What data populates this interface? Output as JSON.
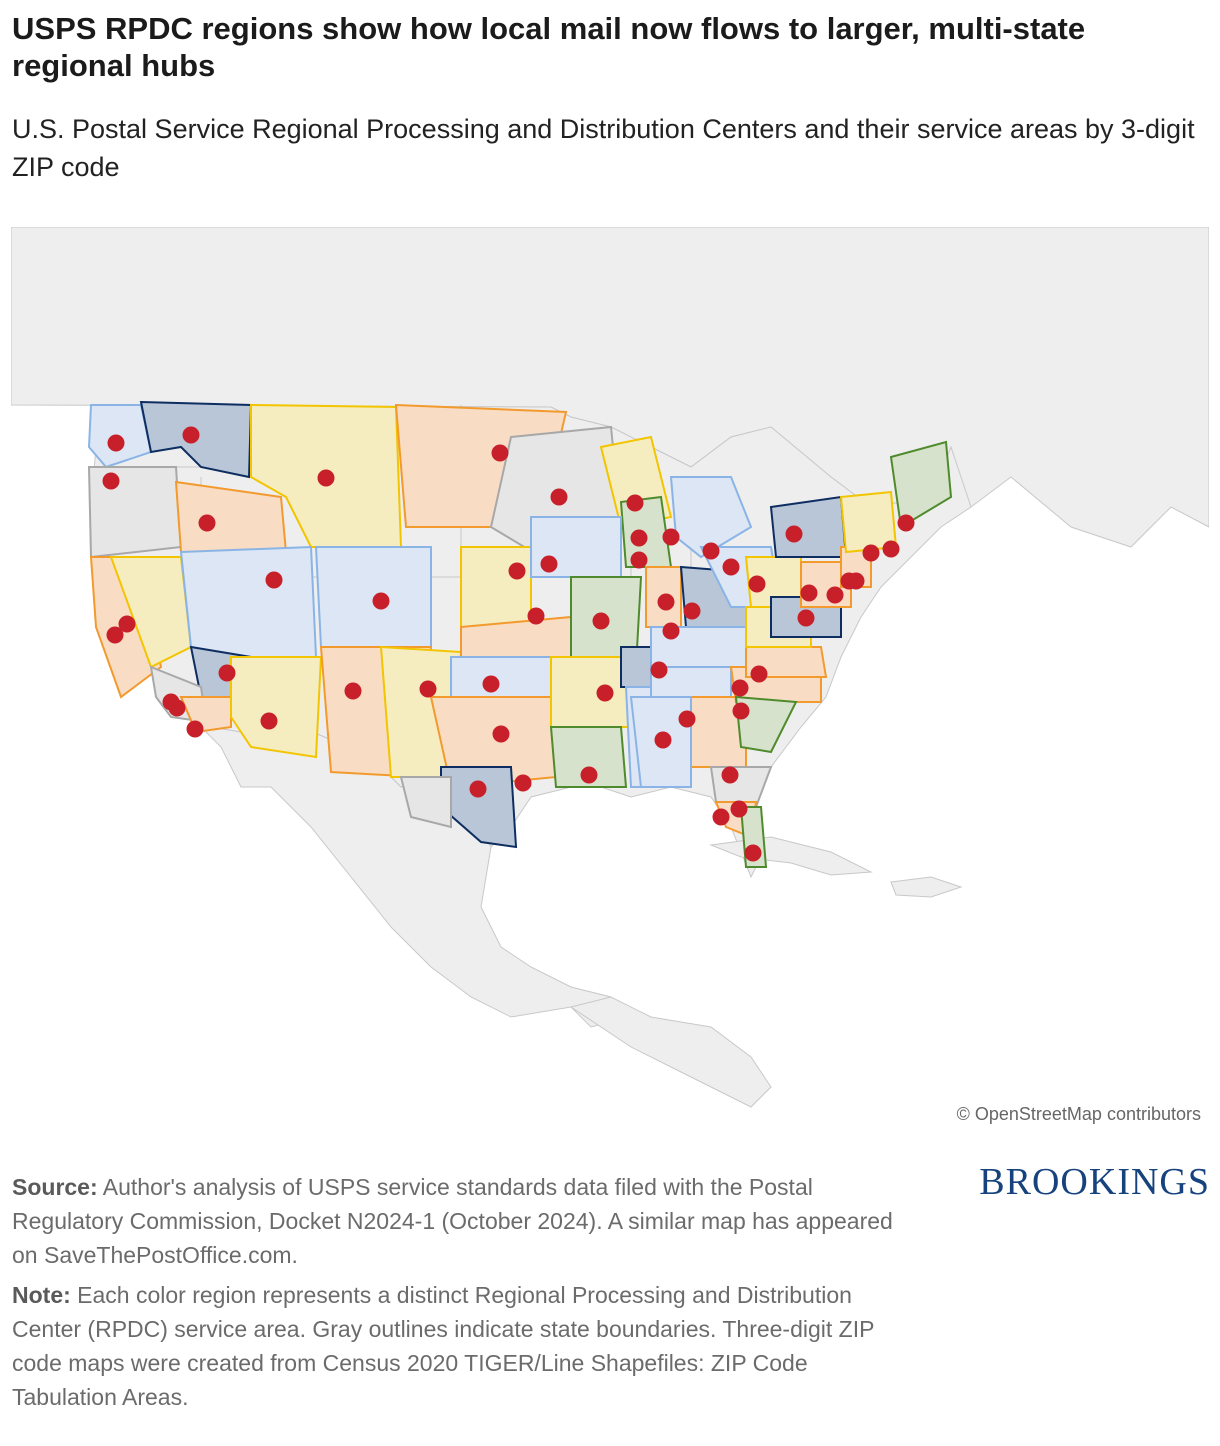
{
  "title": "USPS RPDC regions show how local mail now flows to larger, multi-state regional hubs",
  "subtitle": "U.S. Postal Service Regional Processing and Distribution Centers and their service areas by 3-digit ZIP code",
  "map": {
    "attribution": "© OpenStreetMap contributors",
    "colors": {
      "ocean": "#ffffff",
      "land": "#eeeeee",
      "border": "#c8c8c8",
      "hub": "#c8202a",
      "yellow_fill": "#f5ecbf",
      "yellow_line": "#f2c500",
      "orange_fill": "#f8dcc4",
      "orange_line": "#f39a2e",
      "blue_fill": "#dce6f4",
      "blue_line": "#8ab4e6",
      "navy_fill": "#b8c6d8",
      "navy_line": "#0e2e62",
      "green_fill": "#d6e2cc",
      "green_line": "#4f8b2c",
      "gray_fill": "#e6e6e6",
      "gray_line": "#a8a8a8"
    }
  },
  "source_label": "Source:",
  "source_text": "Author's analysis of USPS service standards data filed with the Postal Regulatory Commission, Docket N2024-1 (October 2024). A similar map has appeared on SaveThePostOffice.com.",
  "note_label": "Note:",
  "note_text": "Each color region represents a distinct Regional Processing and Distribution Center (RPDC) service area. Gray outlines indicate state boundaries. Three-digit ZIP code maps were created from Census 2020 TIGER/Line Shapefiles: ZIP Code Tabulation Areas.",
  "logo": "BROOKINGS"
}
